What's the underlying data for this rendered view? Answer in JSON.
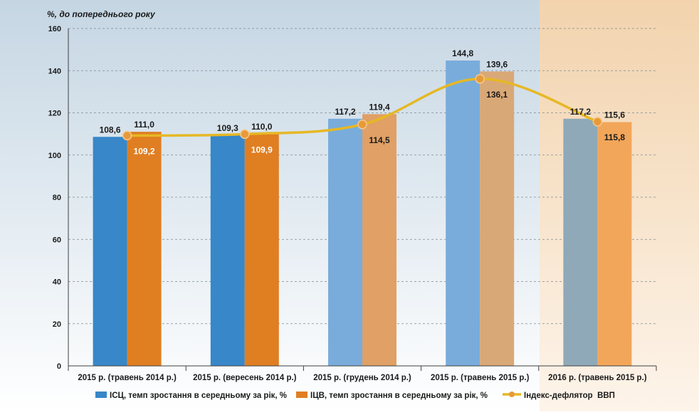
{
  "chart_data": {
    "type": "bar",
    "ylabel": "%, до попереднього року",
    "ylim": [
      0,
      160
    ],
    "yticks": [
      0,
      20,
      40,
      60,
      80,
      100,
      120,
      140,
      160
    ],
    "categories": [
      "2015 р. (травень 2014 р.)",
      "2015 р. (вересень 2014 р.)",
      "2015 р. (грудень 2014 р.)",
      "2015 р. (травень 2015 р.)",
      "2016 р. (травень 2015 р.)"
    ],
    "series": [
      {
        "name": "ІСЦ, темп зростання в середньому за рік, %",
        "kind": "bar",
        "values": [
          108.6,
          109.3,
          117.2,
          144.8,
          117.2
        ],
        "labels": [
          "108,6",
          "109,3",
          "117,2",
          "144,8",
          "117,2"
        ],
        "color": "#3d86c6"
      },
      {
        "name": "ІЦВ, темп зростання в середньому за рік, %",
        "kind": "bar",
        "values": [
          111.0,
          110.0,
          119.4,
          139.6,
          115.6
        ],
        "labels": [
          "111,0",
          "110,0",
          "119,4",
          "139,6",
          "115,6"
        ],
        "color": "#e07f27"
      },
      {
        "name": "Індекс-дефлятор  ВВП",
        "kind": "line",
        "values": [
          109.2,
          109.9,
          114.5,
          136.1,
          115.8
        ],
        "labels": [
          "109,2",
          "109,9",
          "114,5",
          "136,1",
          "115,8"
        ],
        "color": "#e6b824"
      }
    ],
    "grid": true,
    "legend": "bottom",
    "background": {
      "main": "#d3e0ea",
      "forecast": "#f4dcc0"
    }
  }
}
